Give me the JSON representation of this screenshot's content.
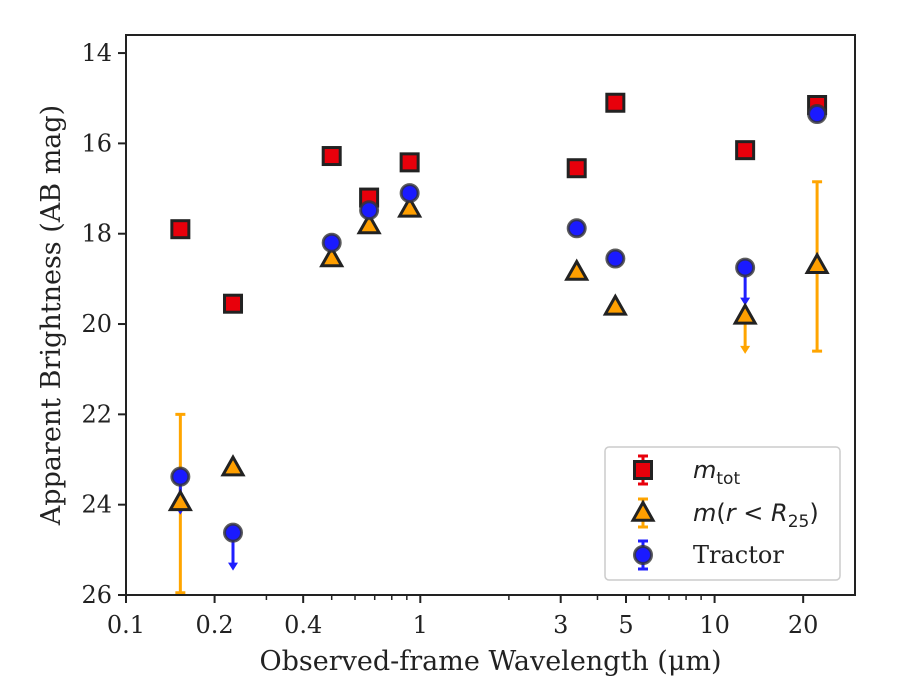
{
  "chart_data": {
    "type": "scatter",
    "xlabel": "Observed-frame Wavelength (μm)",
    "ylabel": "Apparent Brightness (AB mag)",
    "x_scale": "log",
    "xlim": [
      0.1,
      30
    ],
    "ylim": [
      26,
      13.6
    ],
    "y_inverted": true,
    "x_ticks": [
      0.1,
      0.2,
      0.4,
      1,
      3,
      5,
      10,
      20
    ],
    "x_tick_labels": [
      "0.1",
      "0.2",
      "0.4",
      "1",
      "3",
      "5",
      "10",
      "20"
    ],
    "y_ticks": [
      14,
      16,
      18,
      20,
      22,
      24,
      26
    ],
    "y_tick_labels": [
      "14",
      "16",
      "18",
      "20",
      "22",
      "24",
      "26"
    ],
    "grid": false,
    "legend_position": "bottom-right",
    "series": [
      {
        "key": "mtot",
        "name": "m_tot",
        "marker": "square",
        "color": "#e8000b",
        "edge_color": "#222222",
        "errorbar_color": "#e8000b",
        "points": [
          {
            "x": 0.153,
            "y": 17.9
          },
          {
            "x": 0.231,
            "y": 19.55
          },
          {
            "x": 0.5,
            "y": 16.28
          },
          {
            "x": 0.67,
            "y": 17.2
          },
          {
            "x": 0.92,
            "y": 16.42
          },
          {
            "x": 3.4,
            "y": 16.55
          },
          {
            "x": 4.6,
            "y": 15.1
          },
          {
            "x": 12.7,
            "y": 16.15
          },
          {
            "x": 22.3,
            "y": 15.15
          }
        ]
      },
      {
        "key": "mr25",
        "name": "m(r < R25)",
        "marker": "triangle",
        "color": "#ff9f00",
        "edge_color": "#222222",
        "errorbar_color": "#ffa500",
        "points": [
          {
            "x": 0.153,
            "y": 23.95,
            "yerr_low": 22.0,
            "yerr_high": 25.95
          },
          {
            "x": 0.231,
            "y": 23.18
          },
          {
            "x": 0.5,
            "y": 18.55
          },
          {
            "x": 0.67,
            "y": 17.82
          },
          {
            "x": 0.92,
            "y": 17.45
          },
          {
            "x": 3.4,
            "y": 18.85
          },
          {
            "x": 4.6,
            "y": 19.62
          },
          {
            "x": 12.7,
            "y": 19.82,
            "upper_limit": true
          },
          {
            "x": 22.3,
            "y": 18.7,
            "yerr_low": 16.85,
            "yerr_high": 20.6
          }
        ]
      },
      {
        "key": "tractor",
        "name": "Tractor",
        "marker": "circle",
        "color": "#1a1aff",
        "edge_color": "#333333",
        "errorbar_color": "#1f1fff",
        "points": [
          {
            "x": 0.153,
            "y": 23.38,
            "upper_limit": true
          },
          {
            "x": 0.231,
            "y": 24.62,
            "upper_limit": true
          },
          {
            "x": 0.5,
            "y": 18.2
          },
          {
            "x": 0.67,
            "y": 17.48
          },
          {
            "x": 0.92,
            "y": 17.1
          },
          {
            "x": 3.4,
            "y": 17.88
          },
          {
            "x": 4.6,
            "y": 18.55
          },
          {
            "x": 12.7,
            "y": 18.75,
            "upper_limit": true
          },
          {
            "x": 22.3,
            "y": 15.35
          }
        ]
      }
    ]
  }
}
